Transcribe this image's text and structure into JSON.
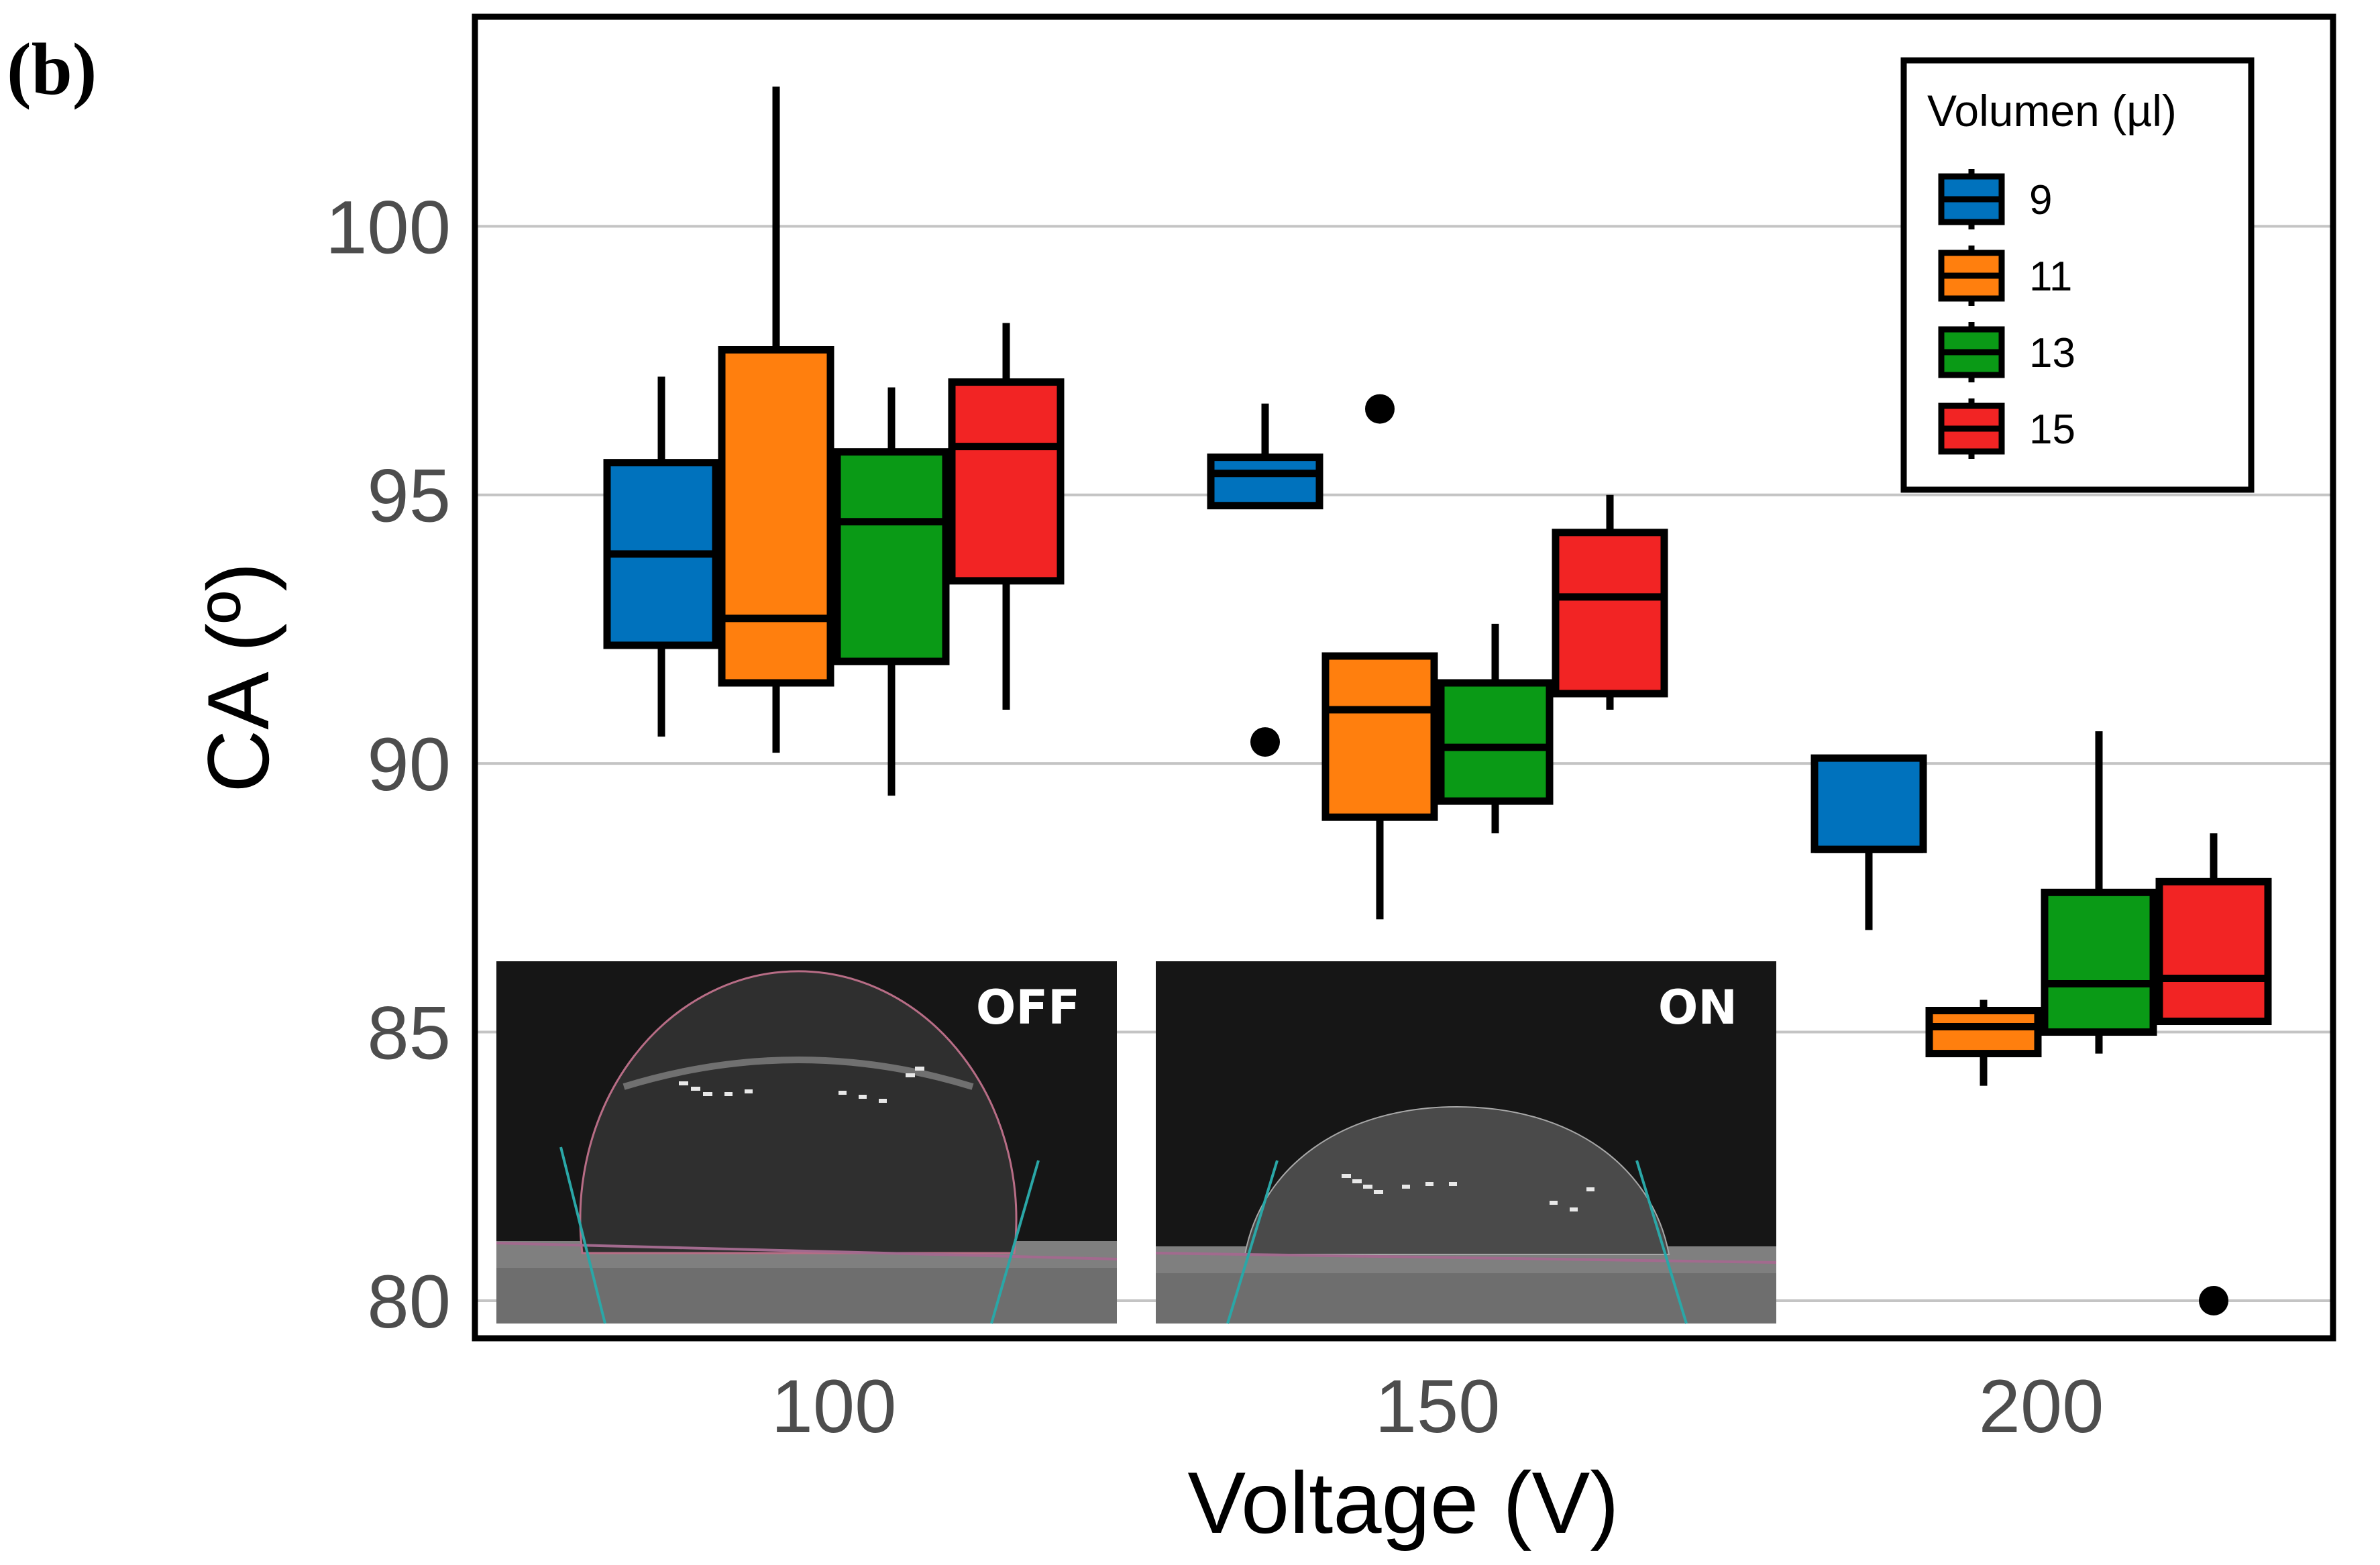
{
  "panel_label": "(b)",
  "colors": {
    "9": "#0072bd",
    "11": "#ff7f0e",
    "13": "#0a9a16",
    "15": "#f22424",
    "grid": "#c4c4c4",
    "inset_bg": "#1a1a1a"
  },
  "insets": [
    {
      "label": "OFF",
      "drop": "off-state-droplet"
    },
    {
      "label": "ON",
      "drop": "on-state-droplet"
    }
  ],
  "chart_data": {
    "type": "boxplot",
    "xlabel": "Voltage (V)",
    "ylabel": "CA (º)",
    "ylim": [
      79.3,
      103.9
    ],
    "yticks": [
      80,
      85,
      90,
      95,
      100
    ],
    "grid": "horizontal",
    "legend": {
      "title": "Volumen (µl)",
      "position": "top-right",
      "entries": [
        "9",
        "11",
        "13",
        "15"
      ]
    },
    "categories": [
      "100",
      "150",
      "200"
    ],
    "series": [
      {
        "name": "9",
        "boxes": [
          {
            "x": "100",
            "min": 90.5,
            "q1": 92.2,
            "median": 93.9,
            "q3": 95.6,
            "max": 97.2,
            "outliers": []
          },
          {
            "x": "150",
            "min": 94.8,
            "q1": 94.8,
            "median": 95.4,
            "q3": 95.7,
            "max": 96.7,
            "outliers": [
              90.4
            ]
          },
          {
            "x": "200",
            "min": 86.9,
            "q1": 88.4,
            "median": 88.4,
            "q3": 90.1,
            "max": 90.1,
            "outliers": []
          }
        ]
      },
      {
        "name": "11",
        "boxes": [
          {
            "x": "100",
            "min": 90.2,
            "q1": 91.5,
            "median": 92.7,
            "q3": 97.7,
            "max": 102.6,
            "outliers": []
          },
          {
            "x": "150",
            "min": 87.1,
            "q1": 89.0,
            "median": 91.0,
            "q3": 92.0,
            "max": 92.0,
            "outliers": [
              96.6
            ]
          },
          {
            "x": "200",
            "min": 84.0,
            "q1": 84.6,
            "median": 85.1,
            "q3": 85.4,
            "max": 85.6,
            "outliers": []
          }
        ]
      },
      {
        "name": "13",
        "boxes": [
          {
            "x": "100",
            "min": 89.4,
            "q1": 91.9,
            "median": 94.5,
            "q3": 95.8,
            "max": 97.0,
            "outliers": []
          },
          {
            "x": "150",
            "min": 88.7,
            "q1": 89.3,
            "median": 90.3,
            "q3": 91.5,
            "max": 92.6,
            "outliers": []
          },
          {
            "x": "200",
            "min": 84.6,
            "q1": 85.0,
            "median": 85.9,
            "q3": 87.6,
            "max": 90.6,
            "outliers": []
          }
        ]
      },
      {
        "name": "15",
        "boxes": [
          {
            "x": "100",
            "min": 91.0,
            "q1": 93.4,
            "median": 95.9,
            "q3": 97.1,
            "max": 98.2,
            "outliers": []
          },
          {
            "x": "150",
            "min": 91.0,
            "q1": 91.3,
            "median": 93.1,
            "q3": 94.3,
            "max": 95.0,
            "outliers": []
          },
          {
            "x": "200",
            "min": 85.2,
            "q1": 85.2,
            "median": 86.0,
            "q3": 87.8,
            "max": 88.7,
            "outliers": [
              80.0
            ]
          }
        ]
      }
    ]
  }
}
